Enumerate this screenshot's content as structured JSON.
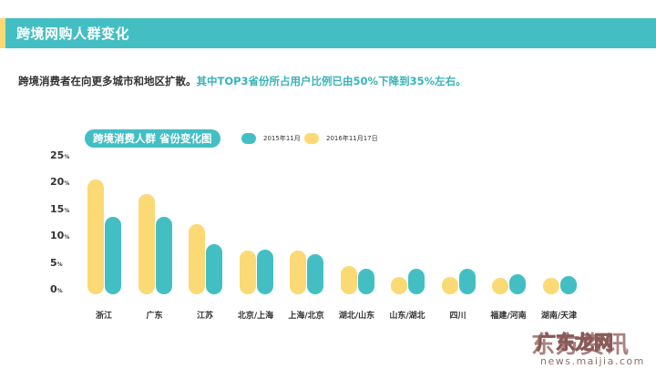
{
  "header": {
    "title": "跨境网购人群变化"
  },
  "subtitle": {
    "text_dark": "跨境消费者在向更多城市和地区扩散。",
    "text_highlight": "其中TOP3省份所占用户比例已由50%下降到35%左右。"
  },
  "colors": {
    "teal": "#43bfc4",
    "yellow": "#fbd974",
    "text": "#333333"
  },
  "chart_data": {
    "type": "bar",
    "title": "跨境消费人群 省份变化图",
    "xlabel": "",
    "ylabel": "",
    "ylim": [
      0,
      25
    ],
    "yticks": [
      "0%",
      "5%",
      "10%",
      "15%",
      "20%",
      "25%"
    ],
    "legend_position": "top",
    "grid": false,
    "categories": [
      "浙江",
      "广东",
      "江苏",
      "北京/上海",
      "上海/北京",
      "湖北/山东",
      "山东/湖北",
      "四川",
      "福建/河南",
      "湖南/天津"
    ],
    "series": [
      {
        "name": "2016年11月17日",
        "color": "#fbd974",
        "values": [
          20.7,
          18.0,
          12.4,
          7.5,
          7.5,
          4.6,
          2.6,
          2.6,
          1.7,
          2.0
        ]
      },
      {
        "name": "2015年11月",
        "color": "#43bfc4",
        "values": [
          13.8,
          13.8,
          8.7,
          7.7,
          6.8,
          4.0,
          4.0,
          4.0,
          3.1,
          2.8
        ]
      }
    ]
  },
  "legend": [
    {
      "label": "2015年11月",
      "color": "#43bfc4"
    },
    {
      "label": "2016年11月17日",
      "color": "#fbd974"
    }
  ],
  "yaxis": [
    {
      "num": "25",
      "unit": "%"
    },
    {
      "num": "20",
      "unit": "%"
    },
    {
      "num": "15",
      "unit": "%"
    },
    {
      "num": "10",
      "unit": "%"
    },
    {
      "num": "5",
      "unit": "%"
    },
    {
      "num": "0",
      "unit": "%"
    }
  ],
  "watermark": {
    "text": "广东龙网",
    "url": "news.maijia.com"
  }
}
